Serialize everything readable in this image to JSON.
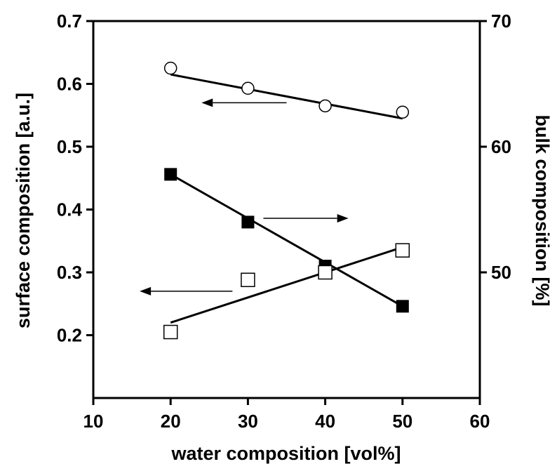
{
  "chart_data": {
    "type": "scatter",
    "x_label": "water composition [vol%]",
    "y_left_label": "surface composition [a.u.]",
    "y_right_label": "bulk composition [%]",
    "x_range": [
      10,
      60
    ],
    "x_ticks": [
      "10",
      "20",
      "30",
      "40",
      "50",
      "60"
    ],
    "y_left_range": [
      0.1,
      0.7
    ],
    "y_left_ticks": [
      "0.2",
      "0.3",
      "0.4",
      "0.5",
      "0.6",
      "0.7"
    ],
    "y_right_range": [
      40,
      70
    ],
    "y_right_ticks": [
      "50",
      "60",
      "70"
    ],
    "grid": false,
    "legend": "none",
    "series": [
      {
        "marker": "open-circle",
        "axis": "left",
        "x": [
          20,
          30,
          40,
          50
        ],
        "y": [
          0.625,
          0.593,
          0.565,
          0.555
        ],
        "fit_line": {
          "x": [
            20,
            50
          ],
          "y": [
            0.615,
            0.545
          ]
        }
      },
      {
        "marker": "filled-square",
        "axis": "right",
        "x": [
          20,
          30,
          40,
          50
        ],
        "y": [
          57.8,
          54.0,
          50.5,
          47.3
        ],
        "fit_line": {
          "x": [
            20,
            50
          ],
          "y": [
            57.8,
            47.3
          ]
        }
      },
      {
        "marker": "open-square",
        "axis": "left",
        "x": [
          20,
          30,
          40,
          50
        ],
        "y": [
          0.205,
          0.288,
          0.3,
          0.335
        ],
        "fit_line": {
          "x": [
            20,
            50
          ],
          "y": [
            0.22,
            0.34
          ]
        }
      }
    ],
    "annotations": [
      {
        "type": "arrow",
        "direction": "left",
        "axis": "left",
        "x_from": 35,
        "x_to": 24,
        "y": 0.57
      },
      {
        "type": "arrow",
        "direction": "right",
        "axis": "right",
        "x_from": 32,
        "x_to": 43,
        "y": 54.3
      },
      {
        "type": "arrow",
        "direction": "left",
        "axis": "left",
        "x_from": 28,
        "x_to": 16,
        "y": 0.27
      }
    ]
  }
}
